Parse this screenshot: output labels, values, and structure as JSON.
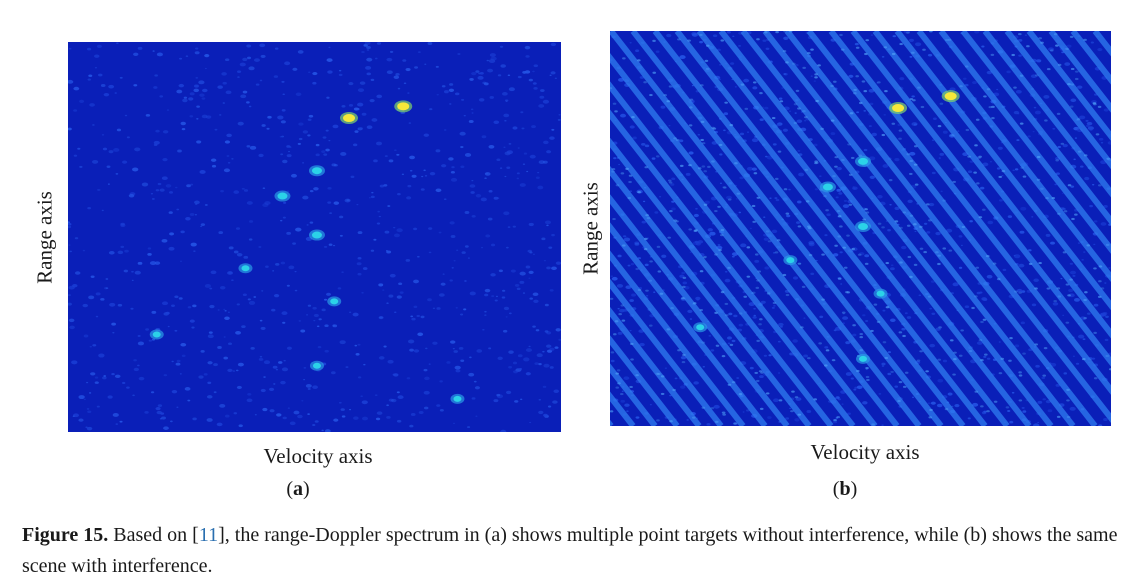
{
  "panel_a": {
    "y_label": "Range axis",
    "x_label": "Velocity axis",
    "open": "(",
    "letter": "a",
    "close": ")"
  },
  "panel_b": {
    "y_label": "Range axis",
    "x_label": "Velocity axis",
    "open": "(",
    "letter": "b",
    "close": ")"
  },
  "caption": {
    "figure_label": "Figure 15.",
    "text_before_ref": " Based on [",
    "ref": "11",
    "text_after_ref": "], the range-Doppler spectrum in (a) shows multiple point targets without interference, while (b) shows the same scene with interference."
  },
  "colors": {
    "background_low": "#0a1fb8",
    "interference_stripe": "#2f7df0",
    "target_cyan": "#2bd2e8",
    "target_yellow": "#f5e83a"
  },
  "chart_data": [
    {
      "type": "heatmap",
      "panel": "a",
      "xlabel": "Velocity axis",
      "ylabel": "Range axis",
      "interference": false,
      "xlim": [
        0,
        1
      ],
      "ylim": [
        0,
        1
      ],
      "targets": [
        {
          "x": 0.68,
          "y": 0.835,
          "level": "high"
        },
        {
          "x": 0.57,
          "y": 0.805,
          "level": "high"
        },
        {
          "x": 0.505,
          "y": 0.67,
          "level": "medium"
        },
        {
          "x": 0.435,
          "y": 0.605,
          "level": "medium"
        },
        {
          "x": 0.505,
          "y": 0.505,
          "level": "medium"
        },
        {
          "x": 0.36,
          "y": 0.42,
          "level": "low"
        },
        {
          "x": 0.54,
          "y": 0.335,
          "level": "low"
        },
        {
          "x": 0.18,
          "y": 0.25,
          "level": "low"
        },
        {
          "x": 0.505,
          "y": 0.17,
          "level": "low"
        },
        {
          "x": 0.79,
          "y": 0.085,
          "level": "low"
        }
      ]
    },
    {
      "type": "heatmap",
      "panel": "b",
      "xlabel": "Velocity axis",
      "ylabel": "Range axis",
      "interference": true,
      "xlim": [
        0,
        1
      ],
      "ylim": [
        0,
        1
      ],
      "targets": [
        {
          "x": 0.68,
          "y": 0.835,
          "level": "high"
        },
        {
          "x": 0.575,
          "y": 0.805,
          "level": "high"
        },
        {
          "x": 0.505,
          "y": 0.67,
          "level": "medium"
        },
        {
          "x": 0.435,
          "y": 0.605,
          "level": "medium"
        },
        {
          "x": 0.505,
          "y": 0.505,
          "level": "medium"
        },
        {
          "x": 0.36,
          "y": 0.42,
          "level": "low"
        },
        {
          "x": 0.54,
          "y": 0.335,
          "level": "low"
        },
        {
          "x": 0.18,
          "y": 0.25,
          "level": "low"
        },
        {
          "x": 0.505,
          "y": 0.17,
          "level": "low"
        }
      ]
    }
  ]
}
